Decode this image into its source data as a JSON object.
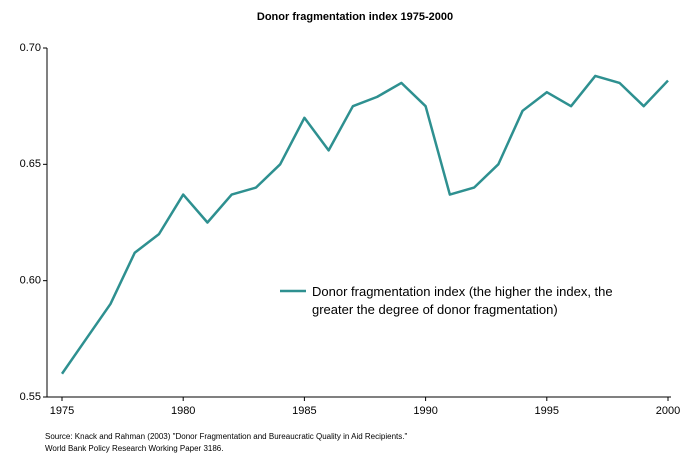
{
  "chart_data": {
    "type": "line",
    "title": "Donor fragmentation index 1975-2000",
    "x": [
      1975,
      1976,
      1977,
      1978,
      1979,
      1980,
      1981,
      1982,
      1983,
      1984,
      1985,
      1986,
      1987,
      1988,
      1989,
      1990,
      1991,
      1992,
      1993,
      1994,
      1995,
      1996,
      1997,
      1998,
      1999,
      2000
    ],
    "series": [
      {
        "name": "Donor fragmentation index (the higher the index, the greater the degree of donor fragmentation)",
        "color": "#2e9090",
        "values": [
          0.56,
          0.575,
          0.59,
          0.612,
          0.62,
          0.637,
          0.625,
          0.637,
          0.64,
          0.65,
          0.67,
          0.656,
          0.675,
          0.679,
          0.685,
          0.675,
          0.637,
          0.64,
          0.65,
          0.673,
          0.681,
          0.675,
          0.688,
          0.685,
          0.675,
          0.686
        ]
      }
    ],
    "xlim": [
      1975,
      2000
    ],
    "xticks": [
      1975,
      1980,
      1985,
      1990,
      1995,
      2000
    ],
    "ylim": [
      0.55,
      0.7
    ],
    "yticks": [
      0.55,
      {
        "value": 0.6,
        "label": "0.60"
      },
      0.65,
      {
        "value": 0.7,
        "label": "0.70"
      }
    ],
    "grid": false,
    "legend": "right",
    "source": [
      "Source:  Knack and Rahman (2003) \"Donor Fragmentation and Bureaucratic Quality in Aid Recipients.\"",
      "World Bank Policy Research Working Paper 3186."
    ]
  }
}
